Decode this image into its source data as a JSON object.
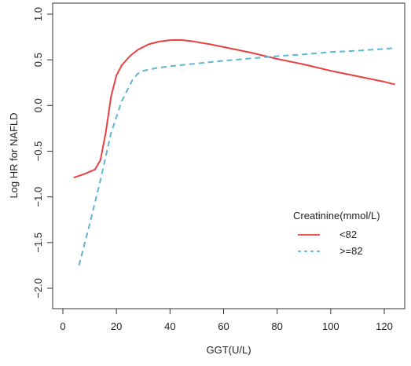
{
  "chart_data": {
    "type": "line",
    "xlabel": "GGT(U/L)",
    "ylabel": "Log HR for NAFLD",
    "xlim": [
      0,
      125
    ],
    "ylim": [
      -2.25,
      1.05
    ],
    "xticks": [
      0,
      20,
      40,
      60,
      80,
      100,
      120
    ],
    "xtick_labels": [
      "0",
      "20",
      "40",
      "60",
      "80",
      "100",
      "120"
    ],
    "yticks": [
      -2.0,
      -1.5,
      -1.0,
      -0.5,
      0.0,
      0.5,
      1.0
    ],
    "ytick_labels": [
      "−2.0",
      "−1.5",
      "−1.0",
      "−0.5",
      "0.0",
      "0.5",
      "1.0"
    ],
    "grid": false,
    "legend": {
      "title": "Creatinine(mmol/L)",
      "placement": "bottom-right"
    },
    "series": [
      {
        "name": "<82",
        "color": "#e8413f",
        "style": "solid",
        "x": [
          4,
          8,
          12,
          14,
          16,
          18,
          20,
          22,
          25,
          28,
          32,
          36,
          40,
          44,
          48,
          55,
          60,
          70,
          80,
          90,
          100,
          110,
          120,
          124
        ],
        "y": [
          -0.79,
          -0.75,
          -0.7,
          -0.6,
          -0.3,
          0.1,
          0.33,
          0.44,
          0.54,
          0.61,
          0.67,
          0.7,
          0.715,
          0.717,
          0.705,
          0.67,
          0.64,
          0.58,
          0.51,
          0.45,
          0.38,
          0.32,
          0.26,
          0.23
        ]
      },
      {
        "name": ">=82",
        "color": "#5fb6d2",
        "style": "dashed",
        "x": [
          6,
          10,
          14,
          18,
          22,
          26,
          28,
          30,
          35,
          40,
          50,
          60,
          70,
          80,
          90,
          100,
          110,
          120,
          124
        ],
        "y": [
          -1.75,
          -1.3,
          -0.82,
          -0.3,
          0.05,
          0.28,
          0.35,
          0.38,
          0.41,
          0.43,
          0.46,
          0.49,
          0.515,
          0.54,
          0.56,
          0.585,
          0.6,
          0.62,
          0.63
        ]
      }
    ]
  }
}
